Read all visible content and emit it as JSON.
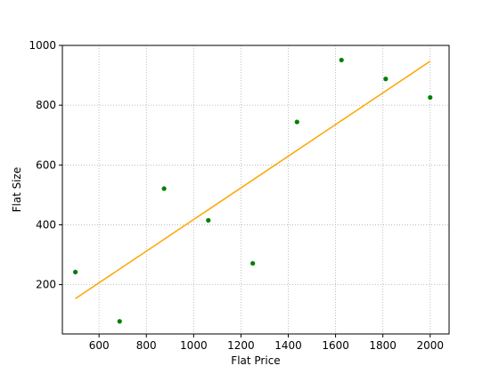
{
  "chart_data": {
    "type": "scatter",
    "title": "",
    "xlabel": "Flat Price",
    "ylabel": "Flat Size",
    "xlim": [
      445,
      2080
    ],
    "ylim": [
      35,
      1000
    ],
    "xticks": [
      600,
      800,
      1000,
      1200,
      1400,
      1600,
      1800,
      2000
    ],
    "yticks": [
      200,
      400,
      600,
      800,
      1000
    ],
    "grid": true,
    "series": [
      {
        "type": "scatter",
        "color": "#008000",
        "points": [
          {
            "x": 500,
            "y": 242
          },
          {
            "x": 687,
            "y": 77
          },
          {
            "x": 875,
            "y": 521
          },
          {
            "x": 1062,
            "y": 415
          },
          {
            "x": 1250,
            "y": 271
          },
          {
            "x": 1437,
            "y": 744
          },
          {
            "x": 1625,
            "y": 951
          },
          {
            "x": 1812,
            "y": 888
          },
          {
            "x": 2000,
            "y": 826
          }
        ]
      },
      {
        "type": "line",
        "color": "#ffa500",
        "points": [
          {
            "x": 500,
            "y": 153
          },
          {
            "x": 2000,
            "y": 947
          }
        ]
      }
    ]
  }
}
